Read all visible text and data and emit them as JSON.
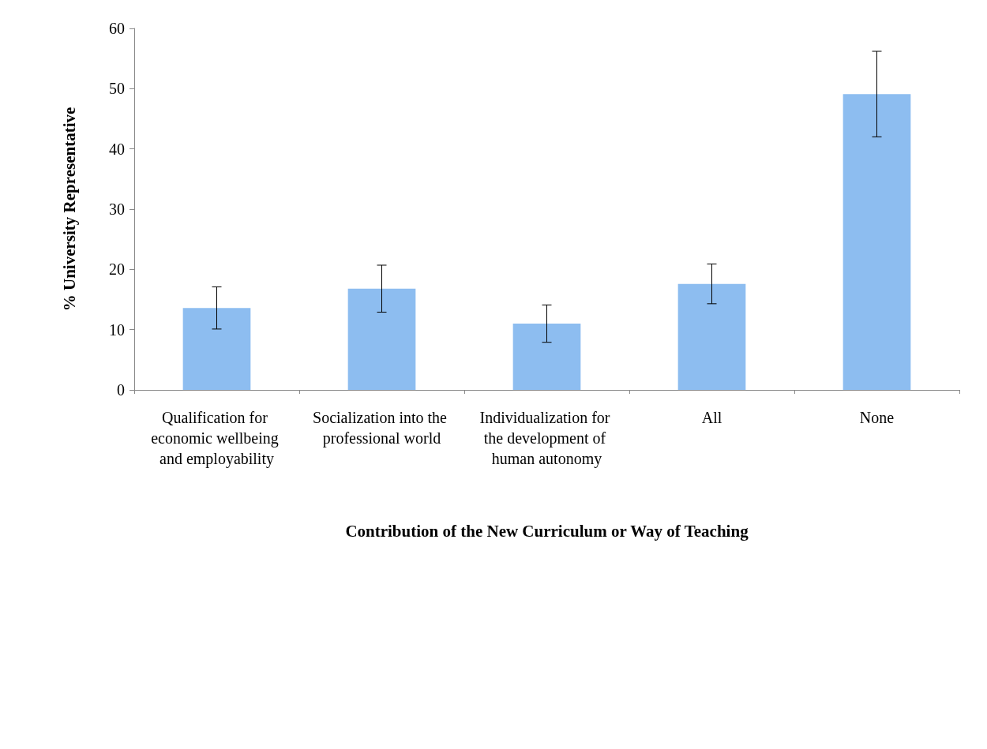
{
  "chart_data": {
    "type": "bar",
    "xlabel": "Contribution of the New Curriculum or Way of Teaching",
    "ylabel": "% University Representative",
    "categories": [
      "Qualification for economic wellbeing and employability",
      "Socialization into the professional world",
      "Individualization for the development of human autonomy",
      "All",
      "None"
    ],
    "values": [
      13.6,
      16.8,
      11.0,
      17.6,
      49.1
    ],
    "errors": [
      3.5,
      3.9,
      3.1,
      3.3,
      7.1
    ],
    "color": "#8dbdf0",
    "ylim": [
      0,
      60
    ],
    "yticks": [
      0,
      10,
      20,
      30,
      40,
      50,
      60
    ],
    "grid": false
  }
}
